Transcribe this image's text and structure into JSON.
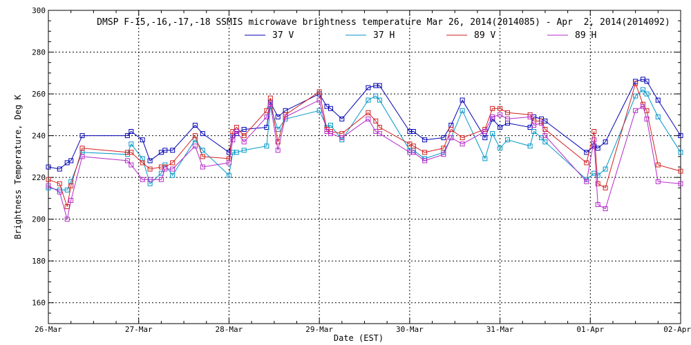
{
  "chart_data": {
    "type": "line",
    "title": "DMSP F-15,-16,-17,-18 SSMIS microwave brightness temperature Mar 26, 2014(2014085) - Apr  2, 2014(2014092)",
    "xlabel": "Date (EST)",
    "ylabel": "Brightness Temperature, Deg K",
    "xlim": [
      "2014-03-26 00:00",
      "2014-04-02 00:00"
    ],
    "ylim": [
      150,
      300
    ],
    "yticks": [
      160,
      180,
      200,
      220,
      240,
      260,
      280,
      300
    ],
    "xtick_labels": [
      "26-Mar",
      "27-Mar",
      "28-Mar",
      "29-Mar",
      "30-Mar",
      "31-Mar",
      "01-Apr",
      "02-Apr"
    ],
    "grid": true,
    "legend_position": "top-center",
    "series": [
      {
        "name": "37 V",
        "color": "#0000b4",
        "points": [
          [
            "2014-03-26 00:00",
            225
          ],
          [
            "2014-03-26 03:00",
            224
          ],
          [
            "2014-03-26 05:00",
            227
          ],
          [
            "2014-03-26 06:00",
            228
          ],
          [
            "2014-03-26 09:00",
            240
          ],
          [
            "2014-03-26 21:00",
            240
          ],
          [
            "2014-03-26 22:00",
            242
          ],
          [
            "2014-03-27 01:00",
            238
          ],
          [
            "2014-03-27 03:00",
            228
          ],
          [
            "2014-03-27 06:00",
            232
          ],
          [
            "2014-03-27 07:00",
            233
          ],
          [
            "2014-03-27 09:00",
            233
          ],
          [
            "2014-03-27 15:00",
            245
          ],
          [
            "2014-03-27 17:00",
            241
          ],
          [
            "2014-03-28 00:00",
            232
          ],
          [
            "2014-03-28 01:00",
            240
          ],
          [
            "2014-03-28 02:00",
            241
          ],
          [
            "2014-03-28 04:00",
            243
          ],
          [
            "2014-03-28 10:00",
            244
          ],
          [
            "2014-03-28 11:00",
            256
          ],
          [
            "2014-03-28 13:00",
            249
          ],
          [
            "2014-03-28 15:00",
            252
          ],
          [
            "2014-03-29 00:00",
            260
          ],
          [
            "2014-03-29 02:00",
            254
          ],
          [
            "2014-03-29 03:00",
            253
          ],
          [
            "2014-03-29 06:00",
            248
          ],
          [
            "2014-03-29 13:00",
            263
          ],
          [
            "2014-03-29 15:00",
            264
          ],
          [
            "2014-03-29 16:00",
            264
          ],
          [
            "2014-03-30 00:00",
            242
          ],
          [
            "2014-03-30 01:00",
            242
          ],
          [
            "2014-03-30 04:00",
            238
          ],
          [
            "2014-03-30 09:00",
            239
          ],
          [
            "2014-03-30 11:00",
            245
          ],
          [
            "2014-03-30 14:00",
            257
          ],
          [
            "2014-03-30 20:00",
            239
          ],
          [
            "2014-03-30 22:00",
            248
          ],
          [
            "2014-03-31 00:00",
            244
          ],
          [
            "2014-03-31 02:00",
            246
          ],
          [
            "2014-03-31 08:00",
            244
          ],
          [
            "2014-03-31 09:00",
            249
          ],
          [
            "2014-03-31 11:00",
            248
          ],
          [
            "2014-03-31 12:00",
            247
          ],
          [
            "2014-03-31 23:00",
            232
          ],
          [
            "2014-04-01 01:00",
            235
          ],
          [
            "2014-04-01 02:00",
            234
          ],
          [
            "2014-04-01 04:00",
            237
          ],
          [
            "2014-04-01 12:00",
            266
          ],
          [
            "2014-04-01 14:00",
            267
          ],
          [
            "2014-04-01 15:00",
            266
          ],
          [
            "2014-04-01 18:00",
            257
          ],
          [
            "2014-04-02 00:00",
            240
          ]
        ]
      },
      {
        "name": "37 H",
        "color": "#0096c8",
        "points": [
          [
            "2014-03-26 00:00",
            215
          ],
          [
            "2014-03-26 03:00",
            214
          ],
          [
            "2014-03-26 05:00",
            214
          ],
          [
            "2014-03-26 06:00",
            218
          ],
          [
            "2014-03-26 09:00",
            232
          ],
          [
            "2014-03-26 21:00",
            231
          ],
          [
            "2014-03-26 22:00",
            236
          ],
          [
            "2014-03-27 01:00",
            229
          ],
          [
            "2014-03-27 03:00",
            217
          ],
          [
            "2014-03-27 06:00",
            222
          ],
          [
            "2014-03-27 07:00",
            226
          ],
          [
            "2014-03-27 09:00",
            221
          ],
          [
            "2014-03-27 15:00",
            238
          ],
          [
            "2014-03-27 17:00",
            233
          ],
          [
            "2014-03-28 00:00",
            221
          ],
          [
            "2014-03-28 01:00",
            232
          ],
          [
            "2014-03-28 02:00",
            232
          ],
          [
            "2014-03-28 04:00",
            233
          ],
          [
            "2014-03-28 10:00",
            235
          ],
          [
            "2014-03-28 11:00",
            254
          ],
          [
            "2014-03-28 13:00",
            243
          ],
          [
            "2014-03-28 15:00",
            248
          ],
          [
            "2014-03-29 00:00",
            252
          ],
          [
            "2014-03-29 02:00",
            244
          ],
          [
            "2014-03-29 03:00",
            245
          ],
          [
            "2014-03-29 06:00",
            238
          ],
          [
            "2014-03-29 13:00",
            257
          ],
          [
            "2014-03-29 15:00",
            259
          ],
          [
            "2014-03-29 16:00",
            257
          ],
          [
            "2014-03-30 00:00",
            233
          ],
          [
            "2014-03-30 01:00",
            233
          ],
          [
            "2014-03-30 04:00",
            229
          ],
          [
            "2014-03-30 09:00",
            232
          ],
          [
            "2014-03-30 11:00",
            239
          ],
          [
            "2014-03-30 14:00",
            252
          ],
          [
            "2014-03-30 20:00",
            229
          ],
          [
            "2014-03-30 22:00",
            241
          ],
          [
            "2014-03-31 00:00",
            234
          ],
          [
            "2014-03-31 02:00",
            238
          ],
          [
            "2014-03-31 08:00",
            235
          ],
          [
            "2014-03-31 09:00",
            242
          ],
          [
            "2014-03-31 11:00",
            239
          ],
          [
            "2014-03-31 12:00",
            237
          ],
          [
            "2014-03-31 23:00",
            219
          ],
          [
            "2014-04-01 01:00",
            222
          ],
          [
            "2014-04-01 02:00",
            221
          ],
          [
            "2014-04-01 04:00",
            224
          ],
          [
            "2014-04-01 12:00",
            259
          ],
          [
            "2014-04-01 14:00",
            262
          ],
          [
            "2014-04-01 15:00",
            260
          ],
          [
            "2014-04-01 18:00",
            249
          ],
          [
            "2014-04-02 00:00",
            232
          ]
        ]
      },
      {
        "name": "89 V",
        "color": "#d21e1e",
        "points": [
          [
            "2014-03-26 00:00",
            219
          ],
          [
            "2014-03-26 03:00",
            217
          ],
          [
            "2014-03-26 05:00",
            206
          ],
          [
            "2014-03-26 06:00",
            216
          ],
          [
            "2014-03-26 09:00",
            234
          ],
          [
            "2014-03-26 21:00",
            232
          ],
          [
            "2014-03-26 22:00",
            232
          ],
          [
            "2014-03-27 01:00",
            227
          ],
          [
            "2014-03-27 03:00",
            224
          ],
          [
            "2014-03-27 06:00",
            225
          ],
          [
            "2014-03-27 07:00",
            225
          ],
          [
            "2014-03-27 09:00",
            227
          ],
          [
            "2014-03-27 15:00",
            240
          ],
          [
            "2014-03-27 17:00",
            230
          ],
          [
            "2014-03-28 00:00",
            229
          ],
          [
            "2014-03-28 01:00",
            242
          ],
          [
            "2014-03-28 02:00",
            244
          ],
          [
            "2014-03-28 04:00",
            240
          ],
          [
            "2014-03-28 10:00",
            252
          ],
          [
            "2014-03-28 11:00",
            258
          ],
          [
            "2014-03-28 13:00",
            237
          ],
          [
            "2014-03-28 15:00",
            250
          ],
          [
            "2014-03-29 00:00",
            261
          ],
          [
            "2014-03-29 02:00",
            243
          ],
          [
            "2014-03-29 03:00",
            242
          ],
          [
            "2014-03-29 06:00",
            241
          ],
          [
            "2014-03-29 13:00",
            251
          ],
          [
            "2014-03-29 15:00",
            247
          ],
          [
            "2014-03-29 16:00",
            244
          ],
          [
            "2014-03-30 00:00",
            236
          ],
          [
            "2014-03-30 01:00",
            235
          ],
          [
            "2014-03-30 04:00",
            232
          ],
          [
            "2014-03-30 09:00",
            234
          ],
          [
            "2014-03-30 11:00",
            243
          ],
          [
            "2014-03-30 14:00",
            239
          ],
          [
            "2014-03-30 20:00",
            243
          ],
          [
            "2014-03-30 22:00",
            253
          ],
          [
            "2014-03-31 00:00",
            253
          ],
          [
            "2014-03-31 02:00",
            251
          ],
          [
            "2014-03-31 08:00",
            250
          ],
          [
            "2014-03-31 09:00",
            247
          ],
          [
            "2014-03-31 11:00",
            247
          ],
          [
            "2014-03-31 12:00",
            243
          ],
          [
            "2014-03-31 23:00",
            227
          ],
          [
            "2014-04-01 01:00",
            242
          ],
          [
            "2014-04-01 02:00",
            217
          ],
          [
            "2014-04-01 04:00",
            215
          ],
          [
            "2014-04-01 12:00",
            265
          ],
          [
            "2014-04-01 14:00",
            255
          ],
          [
            "2014-04-01 15:00",
            252
          ],
          [
            "2014-04-01 18:00",
            226
          ],
          [
            "2014-04-02 00:00",
            223
          ]
        ]
      },
      {
        "name": "89 H",
        "color": "#b428c8",
        "points": [
          [
            "2014-03-26 00:00",
            216
          ],
          [
            "2014-03-26 03:00",
            213
          ],
          [
            "2014-03-26 05:00",
            200
          ],
          [
            "2014-03-26 06:00",
            209
          ],
          [
            "2014-03-26 09:00",
            230
          ],
          [
            "2014-03-26 21:00",
            228
          ],
          [
            "2014-03-26 22:00",
            226
          ],
          [
            "2014-03-27 01:00",
            219
          ],
          [
            "2014-03-27 03:00",
            219
          ],
          [
            "2014-03-27 06:00",
            219
          ],
          [
            "2014-03-27 07:00",
            224
          ],
          [
            "2014-03-27 09:00",
            224
          ],
          [
            "2014-03-27 15:00",
            235
          ],
          [
            "2014-03-27 17:00",
            225
          ],
          [
            "2014-03-28 00:00",
            227
          ],
          [
            "2014-03-28 01:00",
            238
          ],
          [
            "2014-03-28 02:00",
            242
          ],
          [
            "2014-03-28 04:00",
            237
          ],
          [
            "2014-03-28 10:00",
            249
          ],
          [
            "2014-03-28 11:00",
            255
          ],
          [
            "2014-03-28 13:00",
            233
          ],
          [
            "2014-03-28 15:00",
            249
          ],
          [
            "2014-03-29 00:00",
            257
          ],
          [
            "2014-03-29 02:00",
            242
          ],
          [
            "2014-03-29 03:00",
            241
          ],
          [
            "2014-03-29 06:00",
            239
          ],
          [
            "2014-03-29 13:00",
            248
          ],
          [
            "2014-03-29 15:00",
            242
          ],
          [
            "2014-03-29 16:00",
            241
          ],
          [
            "2014-03-30 00:00",
            232
          ],
          [
            "2014-03-30 01:00",
            232
          ],
          [
            "2014-03-30 04:00",
            228
          ],
          [
            "2014-03-30 09:00",
            231
          ],
          [
            "2014-03-30 11:00",
            239
          ],
          [
            "2014-03-30 14:00",
            236
          ],
          [
            "2014-03-30 20:00",
            242
          ],
          [
            "2014-03-30 22:00",
            249
          ],
          [
            "2014-03-31 00:00",
            250
          ],
          [
            "2014-03-31 02:00",
            248
          ],
          [
            "2014-03-31 08:00",
            249
          ],
          [
            "2014-03-31 09:00",
            245
          ],
          [
            "2014-03-31 11:00",
            246
          ],
          [
            "2014-03-31 12:00",
            240
          ],
          [
            "2014-03-31 23:00",
            218
          ],
          [
            "2014-04-01 01:00",
            238
          ],
          [
            "2014-04-01 02:00",
            207
          ],
          [
            "2014-04-01 04:00",
            205
          ],
          [
            "2014-04-01 12:00",
            252
          ],
          [
            "2014-04-01 14:00",
            254
          ],
          [
            "2014-04-01 15:00",
            248
          ],
          [
            "2014-04-01 18:00",
            218
          ],
          [
            "2014-04-02 00:00",
            217
          ]
        ]
      }
    ]
  }
}
